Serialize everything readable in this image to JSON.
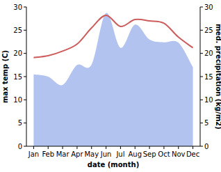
{
  "chart_data": {
    "type": "line",
    "x_label": "date (month)",
    "y_label": "max temp (C)",
    "y2_label": "med. precipitation (kg/m2)",
    "categories": [
      "Jan",
      "Feb",
      "Mar",
      "Apr",
      "May",
      "Jun",
      "Jul",
      "Aug",
      "Sep",
      "Oct",
      "Nov",
      "Dec"
    ],
    "series": [
      {
        "type": "area",
        "axis": "y2",
        "color": "#b3c3f0",
        "values": [
          15.5,
          15,
          13.2,
          17.5,
          17.6,
          28.7,
          21.2,
          26.2,
          23,
          22.4,
          22.3,
          17
        ]
      },
      {
        "type": "line",
        "color": "#cd5c5c",
        "values": [
          19.1,
          19.5,
          20.5,
          22,
          25.5,
          28.2,
          25.8,
          27.3,
          27,
          26.5,
          23.5,
          21.2
        ]
      }
    ],
    "ylim": [
      0,
      30
    ],
    "yticks": [
      0,
      5,
      10,
      15,
      20,
      25,
      30
    ],
    "y2lim": [
      0,
      30
    ],
    "y2ticks": [
      0,
      5,
      10,
      15,
      20,
      25,
      30
    ]
  }
}
